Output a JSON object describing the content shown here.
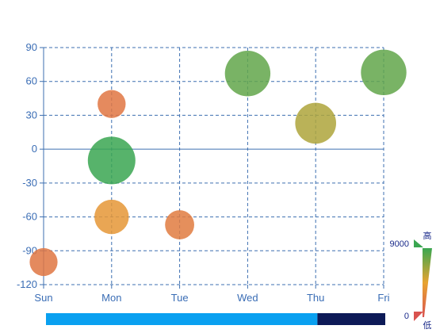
{
  "chart_data": {
    "type": "scatter",
    "title": "",
    "xlabel": "",
    "ylabel": "",
    "categories": [
      "Sun",
      "Mon",
      "Tue",
      "Wed",
      "Thu",
      "Fri"
    ],
    "ylim": [
      -120,
      90
    ],
    "yticks": [
      90,
      60,
      30,
      0,
      -30,
      -60,
      -90,
      -120
    ],
    "grid": true,
    "points": [
      {
        "x": "Sun",
        "y": -100,
        "value": 1900
      },
      {
        "x": "Mon",
        "y": 40,
        "value": 1950
      },
      {
        "x": "Mon",
        "y": -10,
        "value": 9000
      },
      {
        "x": "Mon",
        "y": -60,
        "value": 3700
      },
      {
        "x": "Tue",
        "y": -67,
        "value": 2200
      },
      {
        "x": "Wed",
        "y": 67,
        "value": 8000
      },
      {
        "x": "Thu",
        "y": 23,
        "value": 6000
      },
      {
        "x": "Fri",
        "y": 68,
        "value": 8000
      }
    ],
    "visual_map": {
      "min": 0,
      "max": 9000,
      "max_label": "9000",
      "min_label": "0",
      "high_text": "高",
      "low_text": "低",
      "colors": [
        "#d9534f",
        "#e8a430",
        "#3aa651"
      ]
    },
    "data_zoom": {
      "start_percent": 0,
      "end_percent": 80,
      "selected_color": "#0aa0f0",
      "rest_color": "#0d1a57"
    }
  }
}
